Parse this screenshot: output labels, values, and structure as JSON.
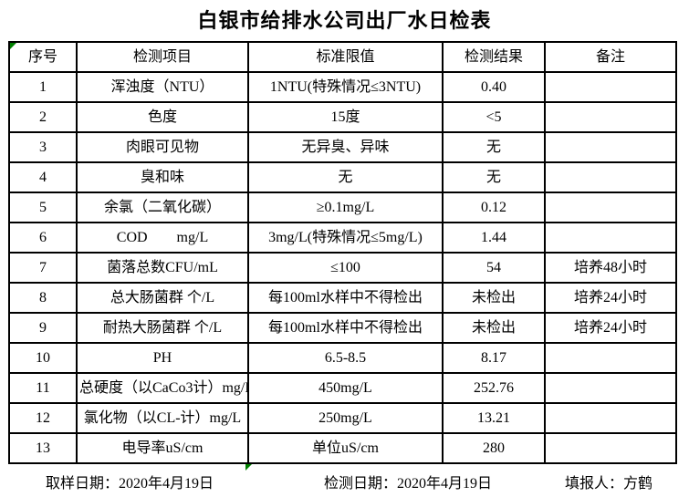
{
  "title": "白银市给排水公司出厂水日检表",
  "table": {
    "columns": [
      "序号",
      "检测项目",
      "标准限值",
      "检测结果",
      "备注"
    ],
    "rows": [
      [
        "1",
        "浑浊度（NTU）",
        "1NTU(特殊情况≤3NTU)",
        "0.40",
        ""
      ],
      [
        "2",
        "色度",
        "15度",
        "<5",
        ""
      ],
      [
        "3",
        "肉眼可见物",
        "无异臭、异味",
        "无",
        ""
      ],
      [
        "4",
        "臭和味",
        "无",
        "无",
        ""
      ],
      [
        "5",
        "余氯（二氧化碳）",
        "≥0.1mg/L",
        "0.12",
        ""
      ],
      [
        "6",
        "COD        mg/L",
        "3mg/L(特殊情况≤5mg/L)",
        "1.44",
        ""
      ],
      [
        "7",
        "菌落总数CFU/mL",
        "≤100",
        "54",
        "培养48小时"
      ],
      [
        "8",
        "总大肠菌群 个/L",
        "每100ml水样中不得检出",
        "未检出",
        "培养24小时"
      ],
      [
        "9",
        "耐热大肠菌群 个/L",
        "每100ml水样中不得检出",
        "未检出",
        "培养24小时"
      ],
      [
        "10",
        "PH",
        "6.5-8.5",
        "8.17",
        ""
      ],
      [
        "11",
        "总硬度（以CaCo3计）mg/L",
        "450mg/L",
        "252.76",
        ""
      ],
      [
        "12",
        "氯化物（以CL-计）mg/L",
        "250mg/L",
        "13.21",
        ""
      ],
      [
        "13",
        "电导率uS/cm",
        "单位uS/cm",
        "280",
        ""
      ]
    ]
  },
  "footer": {
    "sampling_date": "取样日期：2020年4月19日",
    "test_date": "检测日期：2020年4月19日",
    "reporter": "填报人：方鹤"
  },
  "colors": {
    "marker_green": "#008000",
    "border": "#000000"
  }
}
